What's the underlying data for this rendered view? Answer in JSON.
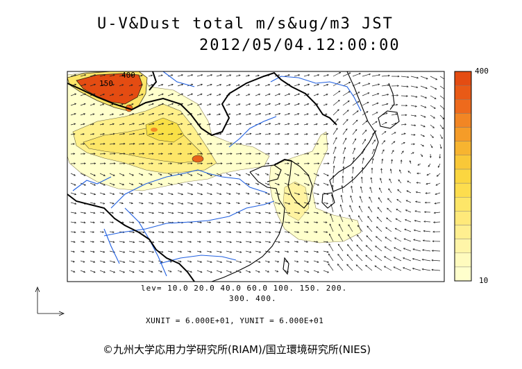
{
  "title": {
    "line1": "U-V&Dust total m/s&ug/m3 JST",
    "line2": "2012/05/04.12:00:00"
  },
  "contour_levels": {
    "line1": "lev= 10.0 20.0 40.0 60.0 100. 150. 200.",
    "line2": "300. 400."
  },
  "units": {
    "text": "XUNIT = 6.000E+01, YUNIT = 6.000E+01"
  },
  "colorbar": {
    "max_label": "400",
    "min_label": "10",
    "colors": [
      "#ffffcc",
      "#fffbbe",
      "#fff5a8",
      "#ffef90",
      "#ffe97a",
      "#fde668",
      "#fddd4e",
      "#fbd640",
      "#f9c838",
      "#f7b430",
      "#f59c28",
      "#f28624",
      "#ee6a1c",
      "#e95a16",
      "#e44c12"
    ]
  },
  "map_labels": {
    "contour_label_a": "400",
    "contour_label_b": "150"
  },
  "copyright": "©九州大学応用力学研究所(RIAM)/国立環境研究所(NIES)"
}
